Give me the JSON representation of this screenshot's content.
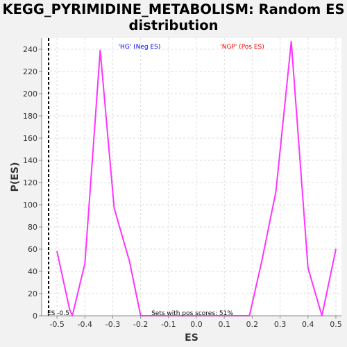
{
  "chart_data": {
    "type": "line",
    "title_line1": "KEGG_PYRIMIDINE_METABOLISM: Random ES",
    "title_line2": "distribution",
    "xlabel": "ES",
    "ylabel": "P(ES)",
    "xlim": [
      -0.555,
      0.52
    ],
    "ylim": [
      0,
      250
    ],
    "x_ticks": [
      "-0.5",
      "-0.4",
      "-0.3",
      "-0.2",
      "-0.1",
      "0.0",
      "0.1",
      "0.2",
      "0.3",
      "0.4",
      "0.5"
    ],
    "y_ticks": [
      "0",
      "20",
      "40",
      "60",
      "80",
      "100",
      "120",
      "140",
      "160",
      "180",
      "200",
      "220",
      "240"
    ],
    "grid": true,
    "series": [
      {
        "color": "#ff33ff",
        "x": [
          -0.5,
          -0.455,
          -0.445,
          -0.4,
          -0.345,
          -0.295,
          -0.24,
          -0.2,
          -0.15,
          -0.1,
          -0.05,
          0.0,
          0.05,
          0.1,
          0.15,
          0.19,
          0.235,
          0.285,
          0.34,
          0.4,
          0.45,
          0.5
        ],
        "y": [
          58,
          6,
          0,
          47,
          239,
          97,
          49,
          0,
          0,
          0,
          0,
          0,
          0,
          0,
          0,
          0,
          50,
          112,
          247,
          43,
          0,
          60
        ]
      }
    ],
    "vline": {
      "x": -0.53,
      "label": "ES -0.5"
    },
    "annotations": {
      "neg": {
        "text": "'HG' (Neg ES)",
        "color": "#0000ff"
      },
      "pos": {
        "text": "'NGP' (Pos ES)",
        "color": "#ff0000"
      },
      "bottom": {
        "text": "Sets with pos scores: 51%",
        "color": "#000000"
      }
    }
  }
}
